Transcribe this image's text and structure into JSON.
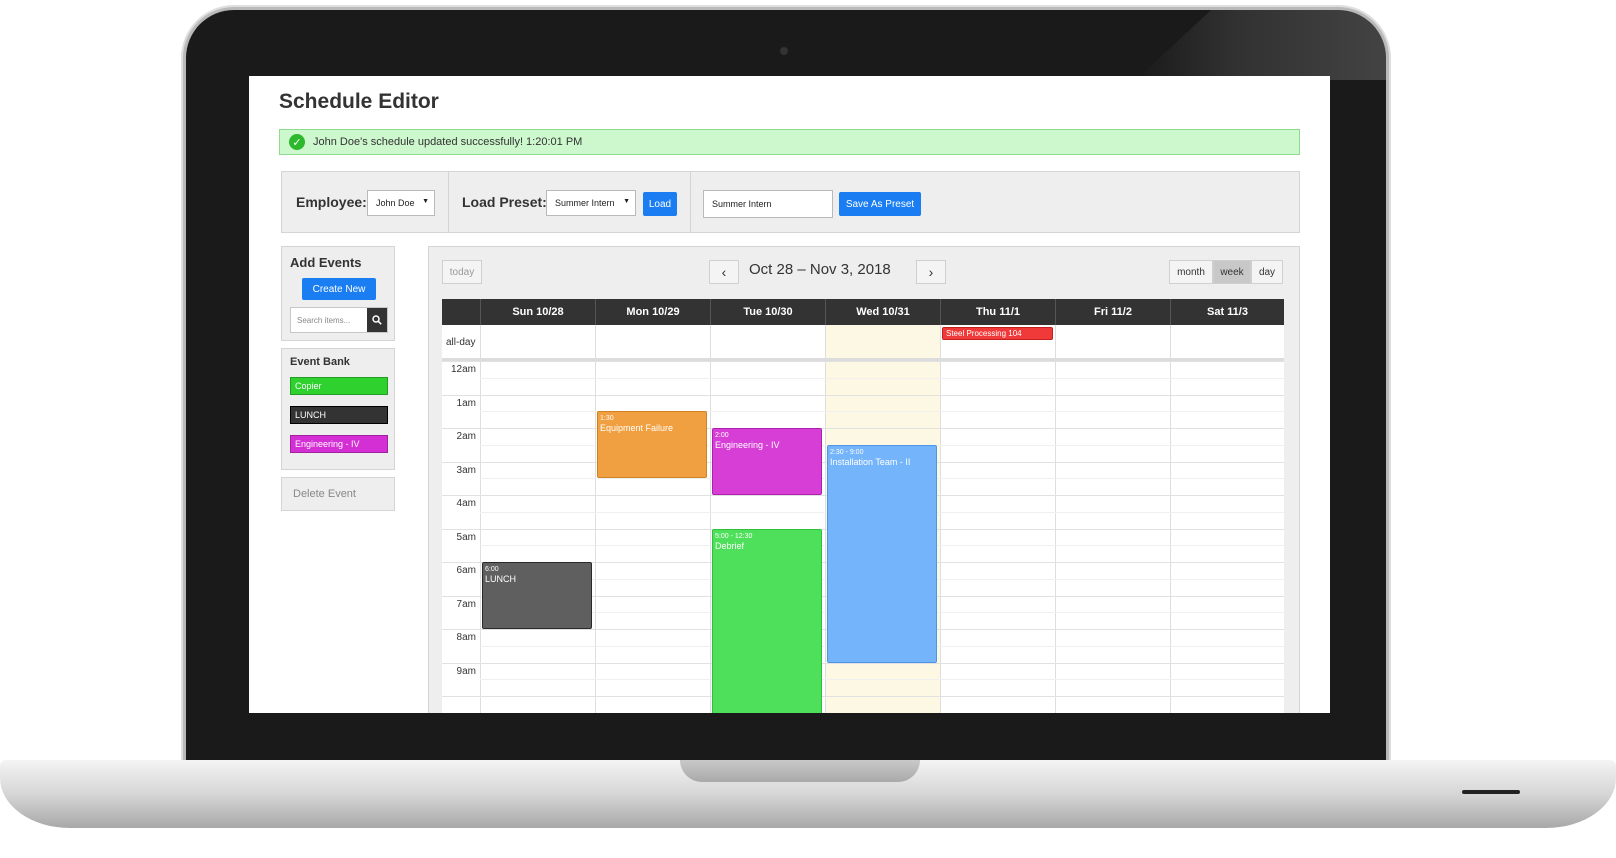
{
  "app": {
    "title": "Schedule Editor",
    "alert": "John Doe's schedule updated successfully! 1:20:01 PM"
  },
  "toolbar": {
    "employee_label": "Employee:",
    "employee_value": "John Doe",
    "preset_label": "Load Preset:",
    "preset_value": "Summer Intern",
    "load_label": "Load",
    "preset_name_value": "Summer Intern",
    "save_preset_label": "Save As Preset"
  },
  "add_events": {
    "title": "Add Events",
    "create_label": "Create New",
    "search_placeholder": "Search items..."
  },
  "event_bank": {
    "title": "Event Bank",
    "items": [
      {
        "label": "Copier",
        "color": "#2fd12f"
      },
      {
        "label": "LUNCH",
        "color": "#333333"
      },
      {
        "label": "Engineering - IV",
        "color": "#d42fd4"
      }
    ]
  },
  "delete_label": "Delete Event",
  "calendar": {
    "today_label": "today",
    "range": "Oct 28 – Nov 3, 2018",
    "views": [
      "month",
      "week",
      "day"
    ],
    "active_view": "week",
    "allday_label": "all-day",
    "days": [
      "Sun 10/28",
      "Mon 10/29",
      "Tue 10/30",
      "Wed 10/31",
      "Thu 11/1",
      "Fri 11/2",
      "Sat 11/3"
    ],
    "today_index": 3,
    "hours": [
      "12am",
      "1am",
      "2am",
      "3am",
      "4am",
      "5am",
      "6am",
      "7am",
      "8am",
      "9am"
    ],
    "allday_events": [
      {
        "title": "Steel Processing 104",
        "day": 4,
        "color": "#f03a3a"
      }
    ],
    "events": [
      {
        "time": "6:00",
        "title": "LUNCH",
        "day": 0,
        "start": 6.0,
        "end": 8.0,
        "color": "#5f5f5f",
        "border": "#2a2a2a"
      },
      {
        "time": "1:30",
        "title": "Equipment Failure",
        "day": 1,
        "start": 1.5,
        "end": 3.5,
        "color": "#f0a040",
        "border": "#cf8124"
      },
      {
        "time": "2:00",
        "title": "Engineering - IV",
        "day": 2,
        "start": 2.0,
        "end": 4.0,
        "color": "#d63ed6",
        "border": "#b020b0"
      },
      {
        "time": "5:00 - 12:30",
        "title": "Debrief",
        "day": 2,
        "start": 5.0,
        "end": 12.5,
        "color": "#4ee05a",
        "border": "#2fc03c"
      },
      {
        "time": "2:30 - 9:00",
        "title": "Installation Team - II",
        "day": 3,
        "start": 2.5,
        "end": 9.0,
        "color": "#74b4fb",
        "border": "#4e95e6"
      }
    ]
  }
}
